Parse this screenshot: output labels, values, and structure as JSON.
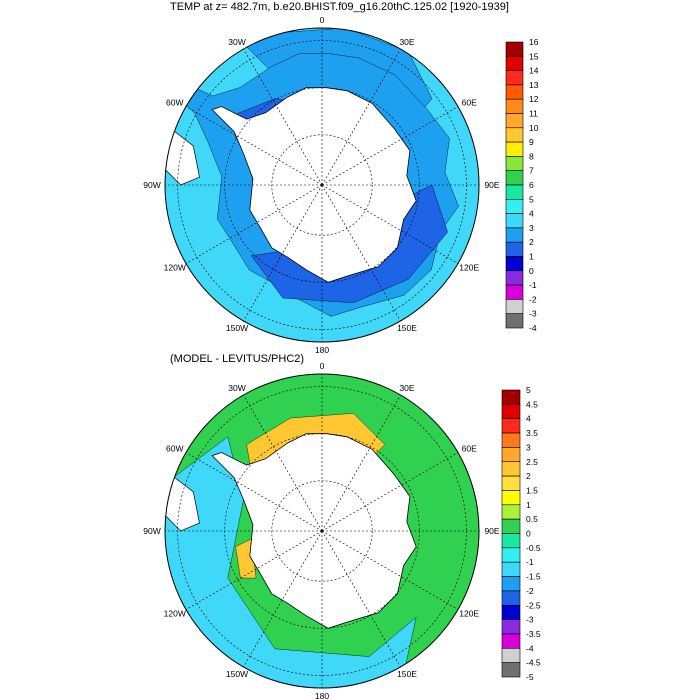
{
  "titles": {
    "top": "TEMP at z= 482.7m, b.e20.BHIST.f09_g16.20thC.125.02 [1920-1939]",
    "bottom": "(MODEL - LEVITUS/PHC2)"
  },
  "longitude_labels": [
    "0",
    "30E",
    "60E",
    "90E",
    "120E",
    "150E",
    "180",
    "150W",
    "120W",
    "90W",
    "60W",
    "30W"
  ],
  "top_colorbar": {
    "labels": [
      "16",
      "15",
      "14",
      "13",
      "12",
      "11",
      "10",
      "9",
      "8",
      "7",
      "6",
      "5",
      "4",
      "3",
      "2",
      "1",
      "0",
      "-1",
      "-2",
      "-3",
      "-4"
    ],
    "colors": [
      "#a00000",
      "#e00000",
      "#ff2a1a",
      "#ff5a00",
      "#ff8c1a",
      "#ffa829",
      "#ffc833",
      "#ffee00",
      "#88e83a",
      "#30d050",
      "#18e8a0",
      "#30f0f0",
      "#40d8f8",
      "#1ea0f0",
      "#1e64e6",
      "#0000d0",
      "#8a2be2",
      "#d800d8",
      "#d0d0d0",
      "#707070"
    ]
  },
  "bottom_colorbar": {
    "labels": [
      "5",
      "4.5",
      "4",
      "3.5",
      "3",
      "2.5",
      "2",
      "1.5",
      "1",
      "0.5",
      "0",
      "-0.5",
      "-1",
      "-1.5",
      "-2",
      "-2.5",
      "-3",
      "-3.5",
      "-4",
      "-4.5",
      "-5"
    ],
    "colors": [
      "#a00000",
      "#e00000",
      "#ff2a1a",
      "#ff7a1a",
      "#ffa829",
      "#ffc833",
      "#ffde40",
      "#ffff00",
      "#aef040",
      "#30d050",
      "#18e8a0",
      "#30f0f0",
      "#40d8f8",
      "#1ea0f0",
      "#1e64e6",
      "#0000d0",
      "#8a2be2",
      "#d800d8",
      "#d0d0d0",
      "#707070"
    ]
  },
  "map_colors": {
    "top_ocean": "#40d8f8",
    "top_deep": "#1e64e6",
    "top_mid": "#1ea0f0",
    "top_cold": "#d800d8",
    "bottom_ocean": "#30d050",
    "bottom_warm": "#ffc833",
    "bottom_cool": "#40d8f8",
    "land": "#ffffff"
  }
}
